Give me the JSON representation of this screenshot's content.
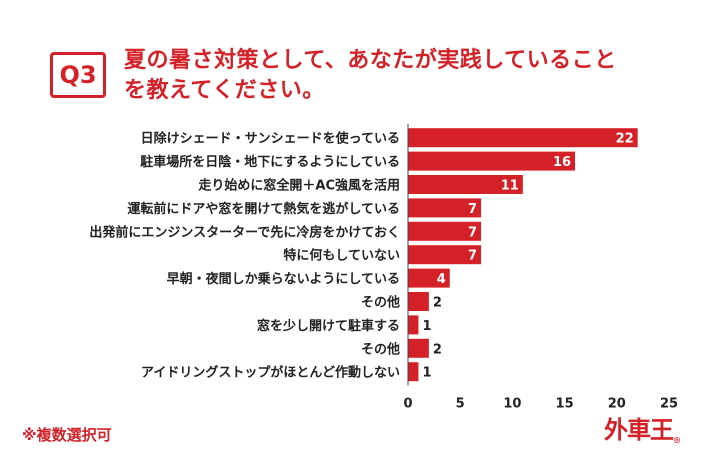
{
  "question": {
    "badge": "Q3",
    "title_line1": "夏の暑さ対策として、あなたが実践していること",
    "title_line2": "を教えてください。"
  },
  "footnote": "※複数選択可",
  "logo": {
    "text": "外車王",
    "mark": "®"
  },
  "colors": {
    "accent": "#d42127",
    "bar": "#d42127",
    "bar_label": "#ffffff"
  },
  "chart_data": {
    "type": "bar",
    "orientation": "horizontal",
    "categories": [
      "日除けシェード・サンシェードを使っている",
      "駐車場所を日陰・地下にするようにしている",
      "走り始めに窓全開＋AC強風を活用",
      "運転前にドアや窓を開けて熱気を逃がしている",
      "出発前にエンジンスターターで先に冷房をかけておく",
      "特に何もしていない",
      "早朝・夜間しか乗らないようにしている",
      "その他",
      "窓を少し開けて駐車する",
      "その他",
      "アイドリングストップがほとんど作動しない"
    ],
    "values": [
      22,
      16,
      11,
      7,
      7,
      7,
      4,
      2,
      1,
      2,
      1
    ],
    "xlim": [
      0,
      25
    ],
    "xticks": [
      0,
      5,
      10,
      15,
      20,
      25
    ],
    "grid": false
  }
}
